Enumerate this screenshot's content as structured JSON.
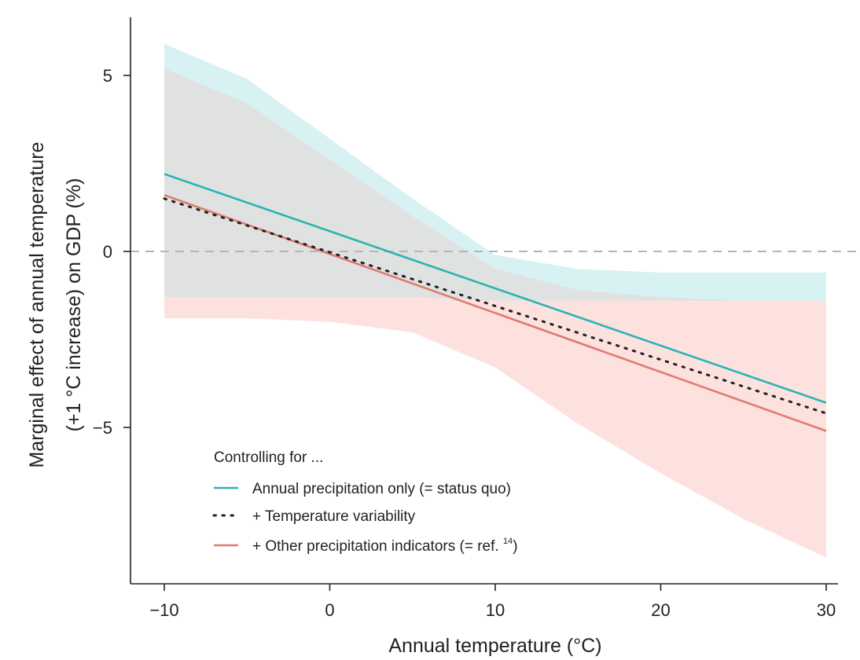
{
  "chart_data": {
    "type": "line",
    "xlabel": "Annual temperature (°C)",
    "ylabel_line1": "Marginal effect of annual temperature",
    "ylabel_line2": "(+1 °C increase) on GDP (%)",
    "xlim": [
      -12,
      31
    ],
    "ylim": [
      -9.4,
      6.6
    ],
    "x_ticks": [
      -10,
      0,
      10,
      20,
      30
    ],
    "x_tick_labels": [
      "−10",
      "0",
      "10",
      "20",
      "30"
    ],
    "y_ticks": [
      5,
      0,
      -5
    ],
    "y_tick_labels": [
      "5",
      "0",
      "−5"
    ],
    "reference_line": 0,
    "legend_title": "Controlling for ...",
    "series": [
      {
        "name": "Annual precipitation only (= status quo)",
        "color": "#2ab3b3",
        "style": "solid",
        "x": [
          -10,
          30
        ],
        "y": [
          2.2,
          -4.3
        ],
        "band": {
          "color": "#d8f1f3",
          "x": [
            -10,
            -5,
            0,
            5,
            10,
            15,
            20,
            25,
            30
          ],
          "upper": [
            5.9,
            4.9,
            3.2,
            1.5,
            -0.1,
            -0.5,
            -0.6,
            -0.6,
            -0.6
          ],
          "lower": [
            -1.3,
            -1.3,
            -1.3,
            -1.3,
            -1.4,
            -1.4,
            -1.4,
            -1.4,
            -1.4
          ]
        }
      },
      {
        "name": "+ Temperature variability",
        "color": "#222222",
        "style": "dotted",
        "x": [
          -10,
          30
        ],
        "y": [
          1.5,
          -4.6
        ]
      },
      {
        "name": "+ Other precipitation indicators (= ref. ",
        "name_superscript": "14",
        "name_suffix": ")",
        "color": "#e07b70",
        "style": "solid",
        "x": [
          -10,
          30
        ],
        "y": [
          1.6,
          -5.1
        ],
        "band": {
          "color": "#fde1de",
          "x": [
            -10,
            -5,
            0,
            5,
            10,
            15,
            20,
            25,
            30
          ],
          "upper": [
            5.2,
            4.2,
            2.6,
            1.0,
            -0.5,
            -1.1,
            -1.3,
            -1.4,
            -1.4
          ],
          "lower": [
            -1.9,
            -1.9,
            -2.0,
            -2.3,
            -3.3,
            -4.9,
            -6.3,
            -7.6,
            -8.7
          ]
        }
      }
    ],
    "overlap_color": "#dfe2e1"
  }
}
